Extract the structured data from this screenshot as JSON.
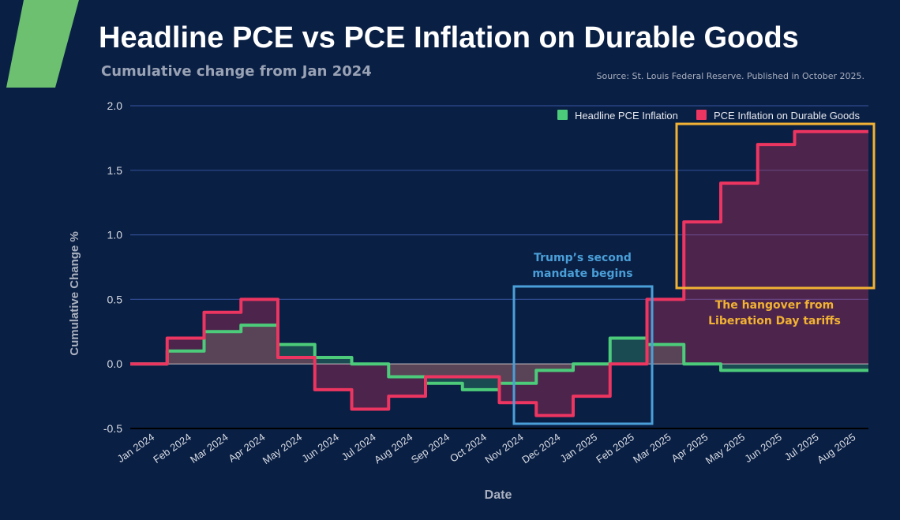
{
  "header": {
    "title": "Headline PCE vs PCE Inflation on Durable Goods",
    "subtitle": "Cumulative change from Jan 2024",
    "source": "Source: St. Louis Federal Reserve. Published in October 2025."
  },
  "colors": {
    "background": "#0a1f44",
    "headline": "#4ccc7a",
    "durable": "#ec3560",
    "annotation_blue": "#4a9fd8",
    "annotation_orange": "#f2b233",
    "logo": "#6cc070"
  },
  "chart_data": {
    "type": "line",
    "step": true,
    "fill_to_zero": true,
    "xlabel": "Date",
    "ylabel": "Cumulative Change %",
    "ylim": [
      -0.5,
      2.0
    ],
    "yticks": [
      "2.0",
      "1.5",
      "1.0",
      "0.5",
      "0.0",
      "-0.5"
    ],
    "grid": true,
    "legend_position": "top-right",
    "categories": [
      "Jan 2024",
      "Feb 2024",
      "Mar 2024",
      "Apr 2024",
      "May 2024",
      "Jun 2024",
      "Jul 2024",
      "Aug 2024",
      "Sep 2024",
      "Oct 2024",
      "Nov 2024",
      "Dec 2024",
      "Jan 2025",
      "Feb 2025",
      "Mar 2025",
      "Apr 2025",
      "May 2025",
      "Jun 2025",
      "Jul 2025",
      "Aug 2025"
    ],
    "series": [
      {
        "name": "Headline PCE Inflation",
        "color": "#4ccc7a",
        "values": [
          0,
          0.1,
          0.25,
          0.3,
          0.15,
          0.05,
          0,
          -0.1,
          -0.15,
          -0.2,
          -0.15,
          -0.05,
          0,
          0.2,
          0.15,
          0,
          -0.05,
          -0.05,
          -0.05,
          -0.05
        ]
      },
      {
        "name": "PCE Inflation on Durable Goods",
        "color": "#ec3560",
        "values": [
          0,
          0.2,
          0.4,
          0.5,
          0.05,
          -0.2,
          -0.35,
          -0.25,
          -0.1,
          -0.1,
          -0.3,
          -0.4,
          -0.25,
          0,
          0.5,
          1.1,
          1.4,
          1.7,
          1.8,
          1.8
        ]
      }
    ],
    "annotations": [
      {
        "text_lines": [
          "Trump’s second",
          "mandate begins"
        ],
        "color": "#4a9fd8",
        "from": "Nov 2024",
        "to": "Feb 2025"
      },
      {
        "text_lines": [
          "The hangover from",
          "Liberation Day tariffs"
        ],
        "color": "#f2b233",
        "from": "Apr 2025",
        "to": "Aug 2025"
      }
    ]
  }
}
